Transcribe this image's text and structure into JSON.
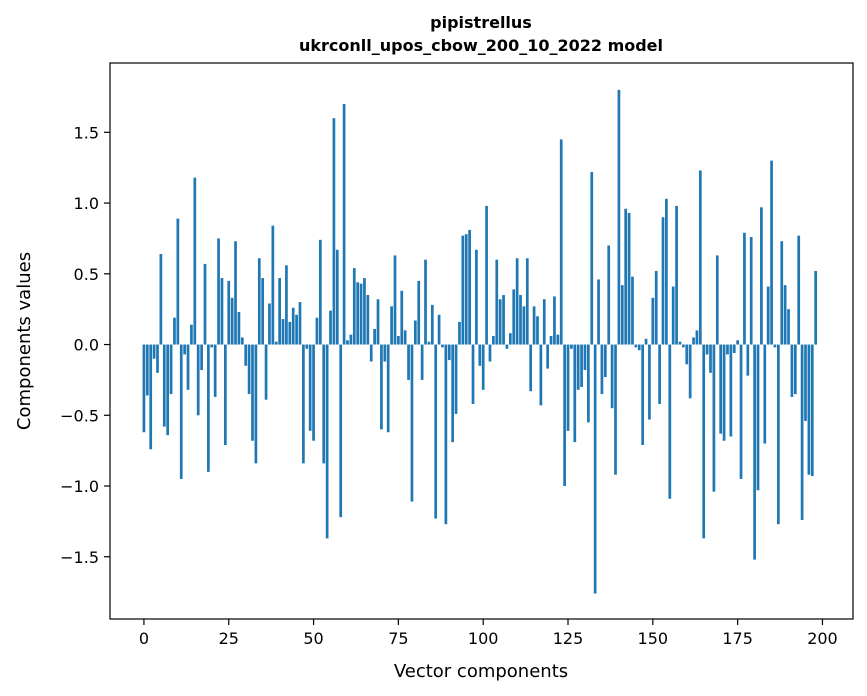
{
  "chart_data": {
    "type": "bar",
    "title": "pipistrellus",
    "subtitle": "ukrconll_upos_cbow_200_10_2022 model",
    "xlabel": "Vector components",
    "ylabel": "Components values",
    "xlim": [
      -10,
      209
    ],
    "ylim": [
      -1.94,
      1.99
    ],
    "xticks": [
      0,
      25,
      50,
      75,
      100,
      125,
      150,
      175,
      200
    ],
    "yticks": [
      -1.5,
      -1.0,
      -0.5,
      0.0,
      0.5,
      1.0,
      1.5
    ],
    "ytick_labels": [
      "−1.5",
      "−1.0",
      "−0.5",
      "0.0",
      "0.5",
      "1.0",
      "1.5"
    ],
    "bar_color": "#1f77b4",
    "grid": false,
    "values": [
      -0.62,
      -0.36,
      -0.74,
      -0.1,
      -0.2,
      0.64,
      -0.58,
      -0.64,
      -0.35,
      0.19,
      0.89,
      -0.95,
      -0.07,
      -0.32,
      0.14,
      1.18,
      -0.5,
      -0.18,
      0.57,
      -0.9,
      -0.02,
      -0.37,
      0.75,
      0.47,
      -0.71,
      0.45,
      0.33,
      0.73,
      0.23,
      0.05,
      -0.15,
      -0.35,
      -0.68,
      -0.84,
      0.61,
      0.47,
      -0.39,
      0.29,
      0.84,
      0.02,
      0.47,
      0.18,
      0.56,
      0.16,
      0.26,
      0.21,
      0.3,
      -0.84,
      -0.03,
      -0.61,
      -0.68,
      0.19,
      0.74,
      -0.84,
      -1.37,
      0.24,
      1.6,
      0.67,
      -1.22,
      1.7,
      0.03,
      0.07,
      0.54,
      0.44,
      0.43,
      0.47,
      0.35,
      -0.12,
      0.11,
      0.32,
      -0.6,
      -0.12,
      -0.62,
      0.27,
      0.63,
      0.06,
      0.38,
      0.1,
      -0.25,
      -1.11,
      0.17,
      0.45,
      -0.25,
      0.6,
      0.02,
      0.28,
      -1.23,
      0.21,
      -0.02,
      -1.27,
      -0.11,
      -0.69,
      -0.49,
      0.16,
      0.77,
      0.78,
      0.81,
      -0.42,
      0.67,
      -0.15,
      -0.32,
      0.98,
      -0.12,
      0.06,
      0.6,
      0.32,
      0.35,
      -0.03,
      0.08,
      0.39,
      0.61,
      0.35,
      0.27,
      0.61,
      -0.33,
      0.27,
      0.2,
      -0.43,
      0.32,
      -0.17,
      0.06,
      0.34,
      0.07,
      1.45,
      -1.0,
      -0.61,
      -0.03,
      -0.69,
      -0.32,
      -0.3,
      -0.18,
      -0.55,
      1.22,
      -1.76,
      0.46,
      -0.35,
      -0.23,
      0.7,
      -0.45,
      -0.92,
      1.8,
      0.42,
      0.96,
      0.93,
      0.48,
      -0.02,
      -0.04,
      -0.71,
      0.04,
      -0.53,
      0.33,
      0.52,
      -0.42,
      0.9,
      1.03,
      -1.09,
      0.41,
      0.98,
      0.02,
      -0.02,
      -0.14,
      -0.38,
      0.05,
      0.1,
      1.23,
      -1.37,
      -0.07,
      -0.2,
      -1.04,
      0.63,
      -0.63,
      -0.68,
      -0.07,
      -0.65,
      -0.06,
      0.03,
      -0.95,
      0.79,
      -0.22,
      0.76,
      -1.52,
      -1.03,
      0.97,
      -0.7,
      0.41,
      1.3,
      -0.02,
      -1.27,
      0.73,
      0.42,
      0.25,
      -0.37,
      -0.35,
      0.77,
      -1.24,
      -0.54,
      -0.92,
      -0.93,
      0.52
    ]
  }
}
